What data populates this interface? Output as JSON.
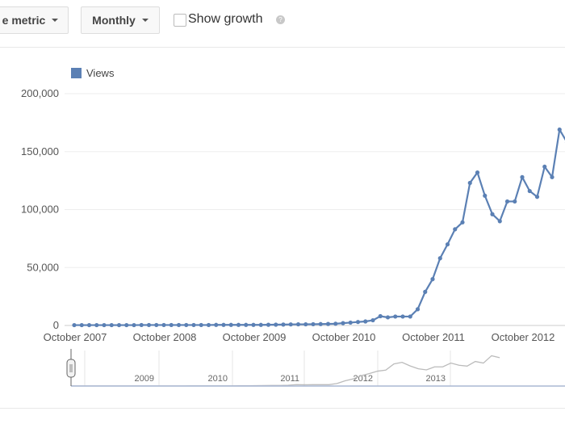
{
  "toolbar": {
    "metric_button": "e metric",
    "period_button": "Monthly",
    "show_growth_label": "Show growth",
    "show_growth_checked": false,
    "help_icon": "help-circle-icon"
  },
  "chart_data": {
    "type": "line",
    "legend": {
      "position": "top-left",
      "entries": [
        "Views"
      ]
    },
    "series": [
      {
        "name": "Views",
        "color": "#5b80b4",
        "start_month": "October 2007",
        "interval": "monthly",
        "values": [
          300,
          300,
          300,
          300,
          300,
          300,
          300,
          300,
          300,
          400,
          400,
          400,
          400,
          400,
          400,
          400,
          400,
          400,
          400,
          500,
          500,
          500,
          500,
          500,
          500,
          500,
          600,
          700,
          800,
          900,
          1000,
          1000,
          1100,
          1200,
          1300,
          1500,
          2000,
          2500,
          3000,
          3500,
          4500,
          8000,
          7000,
          7700,
          7700,
          7700,
          14000,
          29000,
          40000,
          58000,
          70000,
          83000,
          89000,
          123000,
          132000,
          112000,
          96000,
          90000,
          107000,
          107000,
          128000,
          116000,
          111000,
          137000,
          128000,
          169000,
          158000
        ]
      }
    ],
    "ylim": [
      0,
      200000
    ],
    "yticks": [
      "0",
      "50,000",
      "100,000",
      "150,000",
      "200,000"
    ],
    "xticks": [
      "October 2007",
      "October 2008",
      "October 2009",
      "October 2010",
      "October 2011",
      "October 2012"
    ],
    "grid": true,
    "navigator": {
      "year_labels": [
        "2009",
        "2010",
        "2011",
        "2012",
        "2013"
      ]
    }
  }
}
